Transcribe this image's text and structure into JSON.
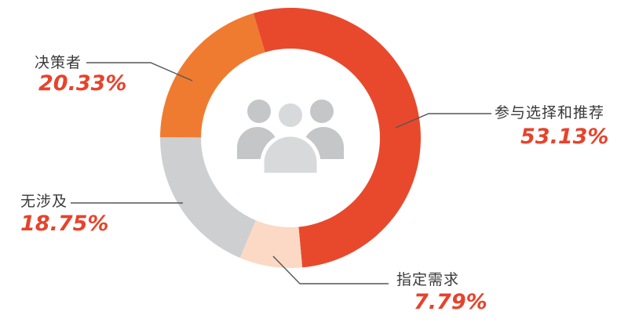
{
  "chart_data": {
    "type": "pie",
    "variant": "donut",
    "title": "",
    "legend": "none",
    "labels_position": "outside-callout",
    "clockwise": true,
    "start_angle_deg_from_top": -16.5,
    "center_icon": "people-group-icon",
    "slices": [
      {
        "label": "参与选择和推荐",
        "value": 53.13,
        "display": "53.13%",
        "color": "#e8492c"
      },
      {
        "label": "指定需求",
        "value": 7.79,
        "display": "7.79%",
        "color": "#fbd9c4"
      },
      {
        "label": "无涉及",
        "value": 18.75,
        "display": "18.75%",
        "color": "#cdcfd1"
      },
      {
        "label": "决策者",
        "value": 20.33,
        "display": "20.33%",
        "color": "#ef7b30"
      }
    ]
  },
  "colors": {
    "background": "#ffffff",
    "slice_red": "#e8492c",
    "slice_peach": "#fbd9c4",
    "slice_gray": "#cdcfd1",
    "slice_orange": "#ef7b30",
    "label_text": "#3a3a3c",
    "percent_text": "#e7432c",
    "leader_line": "#55565a",
    "icon_back_gray": "#c5c6c8",
    "icon_front_gray": "#d8d9da"
  }
}
